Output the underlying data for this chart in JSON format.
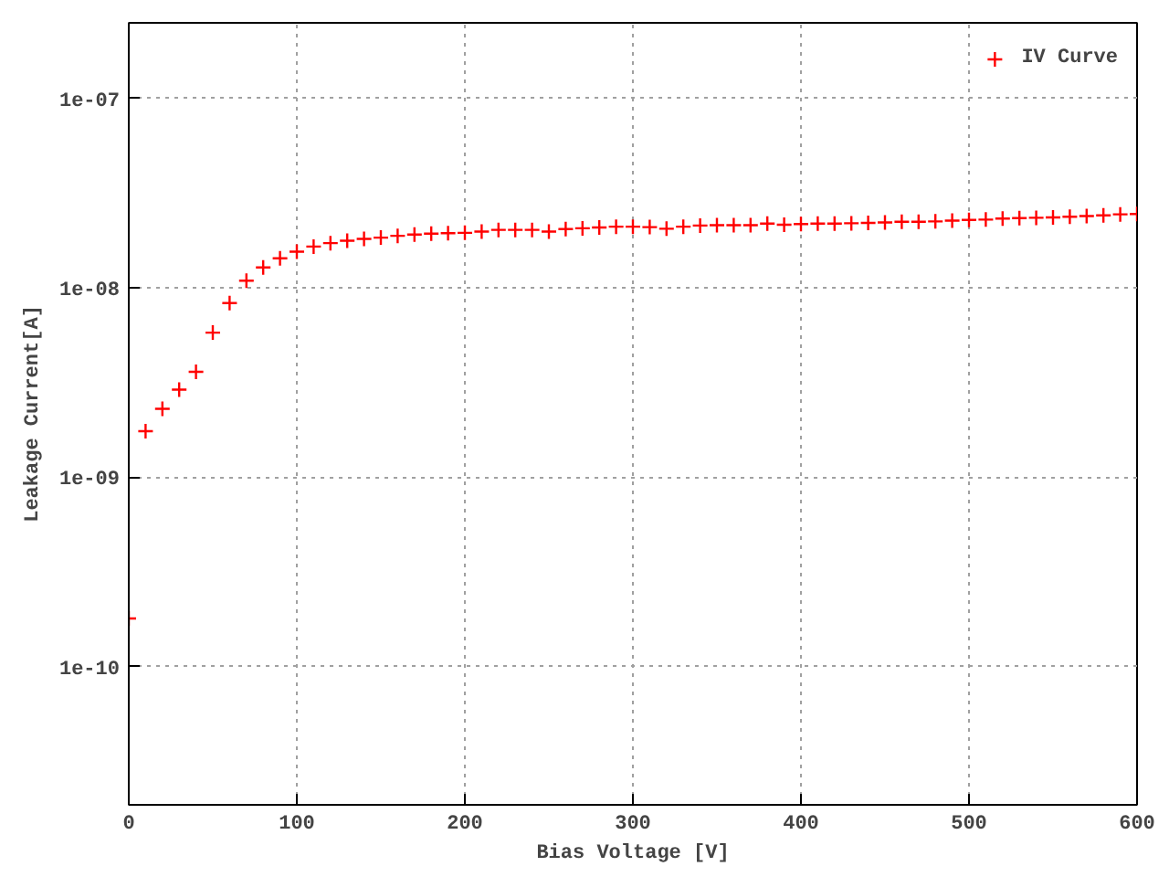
{
  "chart_data": {
    "type": "scatter",
    "xlabel": "Bias Voltage [V]",
    "ylabel": "Leakage Current[A]",
    "x": [
      0,
      10,
      20,
      30,
      40,
      50,
      60,
      70,
      80,
      90,
      100,
      110,
      120,
      130,
      140,
      150,
      160,
      170,
      180,
      190,
      200,
      210,
      220,
      230,
      240,
      250,
      260,
      270,
      280,
      290,
      300,
      310,
      320,
      330,
      340,
      350,
      360,
      370,
      380,
      390,
      400,
      410,
      420,
      430,
      440,
      450,
      460,
      470,
      480,
      490,
      500,
      510,
      520,
      530,
      540,
      550,
      560,
      570,
      580,
      590,
      600
    ],
    "series": [
      {
        "name": "IV Curve",
        "color": "#ff0000",
        "values": [
          1.8e-10,
          1.75e-09,
          2.3e-09,
          2.9e-09,
          3.6e-09,
          5.8e-09,
          8.3e-09,
          1.09e-08,
          1.28e-08,
          1.43e-08,
          1.55e-08,
          1.65e-08,
          1.72e-08,
          1.77e-08,
          1.81e-08,
          1.84e-08,
          1.88e-08,
          1.91e-08,
          1.93e-08,
          1.94e-08,
          1.95e-08,
          1.98e-08,
          2.02e-08,
          2.02e-08,
          2.02e-08,
          1.98e-08,
          2.04e-08,
          2.06e-08,
          2.08e-08,
          2.1e-08,
          2.1e-08,
          2.09e-08,
          2.05e-08,
          2.1e-08,
          2.13e-08,
          2.14e-08,
          2.14e-08,
          2.14e-08,
          2.18e-08,
          2.15e-08,
          2.17e-08,
          2.18e-08,
          2.18e-08,
          2.19e-08,
          2.2e-08,
          2.21e-08,
          2.23e-08,
          2.23e-08,
          2.24e-08,
          2.26e-08,
          2.28e-08,
          2.29e-08,
          2.32e-08,
          2.33e-08,
          2.34e-08,
          2.35e-08,
          2.37e-08,
          2.39e-08,
          2.41e-08,
          2.44e-08,
          2.45e-08
        ]
      }
    ],
    "xlim": [
      0,
      600
    ],
    "xticks": [
      0,
      100,
      200,
      300,
      400,
      500,
      600
    ],
    "ylim": [
      1.87e-11,
      2.5e-07
    ],
    "yticks": [
      {
        "value": 1e-10,
        "label": "1e-10"
      },
      {
        "value": 1e-09,
        "label": "1e-09"
      },
      {
        "value": 1e-08,
        "label": "1e-08"
      },
      {
        "value": 1e-07,
        "label": "1e-07"
      }
    ],
    "log": "y",
    "grid": true,
    "legend": "top right",
    "marker": "cross"
  }
}
